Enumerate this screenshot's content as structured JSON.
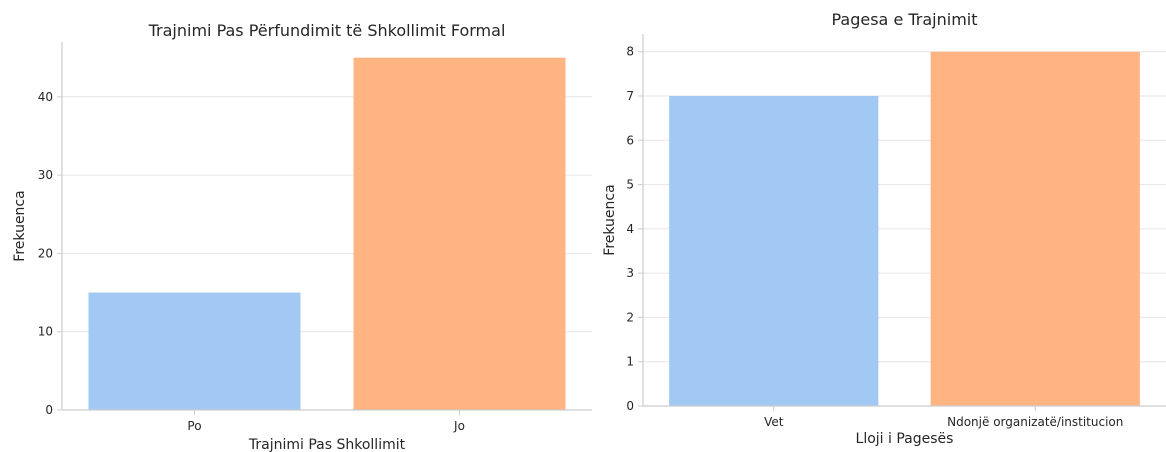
{
  "chart_data": [
    {
      "type": "bar",
      "title": "Trajnimi Pas Përfundimit të Shkollimit Formal",
      "xlabel": "Trajnimi Pas Shkollimit",
      "ylabel": "Frekuenca",
      "categories": [
        "Po",
        "Jo"
      ],
      "values": [
        15,
        45
      ],
      "ylim": [
        0,
        47
      ],
      "yticks": [
        0,
        10,
        20,
        30,
        40
      ],
      "colors": [
        "#a1c9f4",
        "#ffb482"
      ],
      "grid": true,
      "legend": "none"
    },
    {
      "type": "bar",
      "title": "Pagesa e Trajnimit",
      "xlabel": "Lloji i Pagesës",
      "ylabel": "Frekuenca",
      "categories": [
        "Vet",
        "Ndonjë organizatë/institucion"
      ],
      "values": [
        7,
        8
      ],
      "ylim": [
        0,
        8.4
      ],
      "yticks": [
        0,
        1,
        2,
        3,
        4,
        5,
        6,
        7,
        8
      ],
      "colors": [
        "#a1c9f4",
        "#ffb482"
      ],
      "grid": true,
      "legend": "none"
    }
  ]
}
